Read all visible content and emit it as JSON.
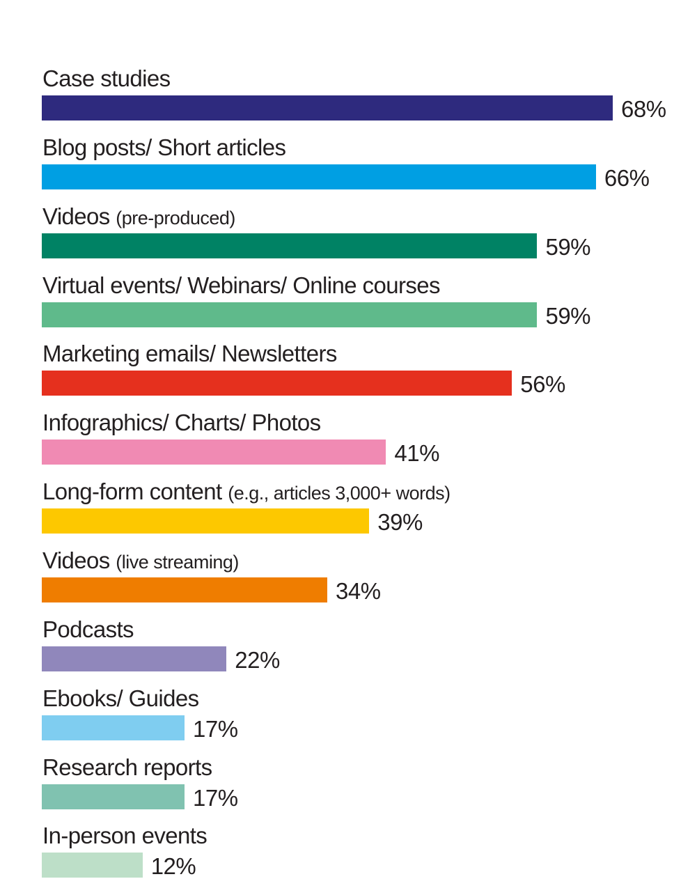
{
  "chart_data": {
    "type": "bar",
    "orientation": "horizontal",
    "categories": [
      "Case studies",
      "Blog posts/ Short articles",
      "Videos",
      "Virtual events/ Webinars/ Online courses",
      "Marketing emails/ Newsletters",
      "Infographics/ Charts/ Photos",
      "Long-form content",
      "Videos",
      "Podcasts",
      "Ebooks/ Guides",
      "Research reports",
      "In-person events"
    ],
    "category_notes": [
      "",
      "",
      "(pre-produced)",
      "",
      "",
      "",
      "(e.g., articles 3,000+ words)",
      "(live streaming)",
      "",
      "",
      "",
      ""
    ],
    "values": [
      68,
      66,
      59,
      59,
      56,
      41,
      39,
      34,
      22,
      17,
      17,
      12
    ],
    "value_labels": [
      "68%",
      "66%",
      "59%",
      "59%",
      "56%",
      "41%",
      "39%",
      "34%",
      "22%",
      "17%",
      "17%",
      "12%"
    ],
    "unit": "%",
    "colors": [
      "#2e2a7e",
      "#009fe3",
      "#008264",
      "#5fba8b",
      "#e5301e",
      "#f08ab3",
      "#fdc800",
      "#ef7d00",
      "#9087bb",
      "#7fcdf0",
      "#80c2b0",
      "#bddfc8"
    ],
    "xlim": [
      0,
      68
    ],
    "title": "",
    "xlabel": "",
    "ylabel": "",
    "grid": false,
    "legend": "none"
  }
}
